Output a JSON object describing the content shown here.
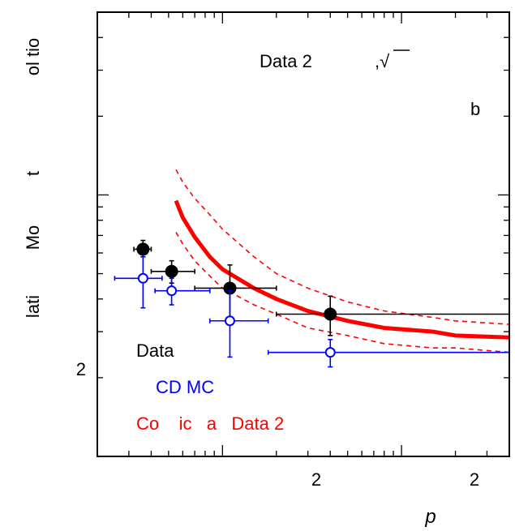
{
  "chart_data": {
    "type": "scatter",
    "ylabel_parts": [
      "lati",
      "Mo",
      "t",
      "ol tio"
    ],
    "xlabel": "p",
    "ytick_label": "2",
    "xtick_labels": [
      "2",
      "2"
    ],
    "panel_label": "b",
    "header_text": "Data 2",
    "header_symbol": ",√",
    "legend": [
      {
        "label": "Data",
        "color": "#000000"
      },
      {
        "label": "CD MC",
        "color": "#0000ff"
      },
      {
        "label": "Co    ic   a   Data 2",
        "color": "#ff0000"
      }
    ],
    "series": [
      {
        "name": "Data",
        "color": "#000000",
        "marker": "filled-circle",
        "points": [
          {
            "x": 0.36,
            "y": 0.0062,
            "xlo": 0.32,
            "xhi": 0.4,
            "ylo": 0.0058,
            "yhi": 0.0067
          },
          {
            "x": 0.52,
            "y": 0.0051,
            "xlo": 0.4,
            "xhi": 0.7,
            "ylo": 0.0046,
            "yhi": 0.0056
          },
          {
            "x": 1.1,
            "y": 0.0044,
            "xlo": 0.7,
            "xhi": 2.0,
            "ylo": 0.0034,
            "yhi": 0.0054
          },
          {
            "x": 4.0,
            "y": 0.0035,
            "xlo": 2.0,
            "xhi": 40.0,
            "ylo": 0.0029,
            "yhi": 0.0041
          }
        ]
      },
      {
        "name": "CD MC",
        "color": "#0000ff",
        "marker": "open-circle",
        "points": [
          {
            "x": 0.36,
            "y": 0.0048,
            "xlo": 0.25,
            "xhi": 0.46,
            "ylo": 0.0037,
            "yhi": 0.0058
          },
          {
            "x": 0.52,
            "y": 0.0043,
            "xlo": 0.42,
            "xhi": 0.85,
            "ylo": 0.0038,
            "yhi": 0.0048
          },
          {
            "x": 1.1,
            "y": 0.0033,
            "xlo": 0.85,
            "xhi": 1.8,
            "ylo": 0.0024,
            "yhi": 0.0043
          },
          {
            "x": 4.0,
            "y": 0.0025,
            "xlo": 1.8,
            "xhi": 40.0,
            "ylo": 0.0022,
            "yhi": 0.0028
          }
        ]
      }
    ],
    "curves": [
      {
        "name": "central",
        "color": "#ff0000",
        "style": "solid",
        "points": [
          [
            0.55,
            0.0095
          ],
          [
            0.6,
            0.0082
          ],
          [
            0.7,
            0.0069
          ],
          [
            0.85,
            0.0058
          ],
          [
            1.0,
            0.0052
          ],
          [
            1.5,
            0.0044
          ],
          [
            2.0,
            0.004
          ],
          [
            3.0,
            0.0036
          ],
          [
            5.0,
            0.0033
          ],
          [
            8.0,
            0.0031
          ],
          [
            15.0,
            0.003
          ],
          [
            20.0,
            0.0029
          ],
          [
            40.0,
            0.00285
          ]
        ]
      },
      {
        "name": "upper",
        "color": "#ff0000",
        "style": "dashed",
        "points": [
          [
            0.55,
            0.0125
          ],
          [
            0.6,
            0.0112
          ],
          [
            0.7,
            0.0097
          ],
          [
            0.85,
            0.0084
          ],
          [
            1.0,
            0.0074
          ],
          [
            1.5,
            0.0058
          ],
          [
            2.0,
            0.005
          ],
          [
            3.0,
            0.0044
          ],
          [
            5.0,
            0.0039
          ],
          [
            8.0,
            0.0036
          ],
          [
            15.0,
            0.0034
          ],
          [
            20.0,
            0.0033
          ],
          [
            40.0,
            0.0032
          ]
        ]
      },
      {
        "name": "lower",
        "color": "#ff0000",
        "style": "dashed",
        "points": [
          [
            0.55,
            0.0072
          ],
          [
            0.6,
            0.0065
          ],
          [
            0.7,
            0.0056
          ],
          [
            0.85,
            0.0049
          ],
          [
            1.0,
            0.0044
          ],
          [
            1.5,
            0.0038
          ],
          [
            2.0,
            0.0035
          ],
          [
            3.0,
            0.0031
          ],
          [
            5.0,
            0.0029
          ],
          [
            8.0,
            0.0027
          ],
          [
            15.0,
            0.0026
          ],
          [
            20.0,
            0.0026
          ],
          [
            40.0,
            0.0025
          ]
        ]
      }
    ],
    "xlim": [
      0.2,
      40
    ],
    "ylim": [
      0.001,
      0.05
    ],
    "xscale": "log",
    "yscale": "log",
    "grid": false,
    "legend_position": "bottom-left"
  }
}
